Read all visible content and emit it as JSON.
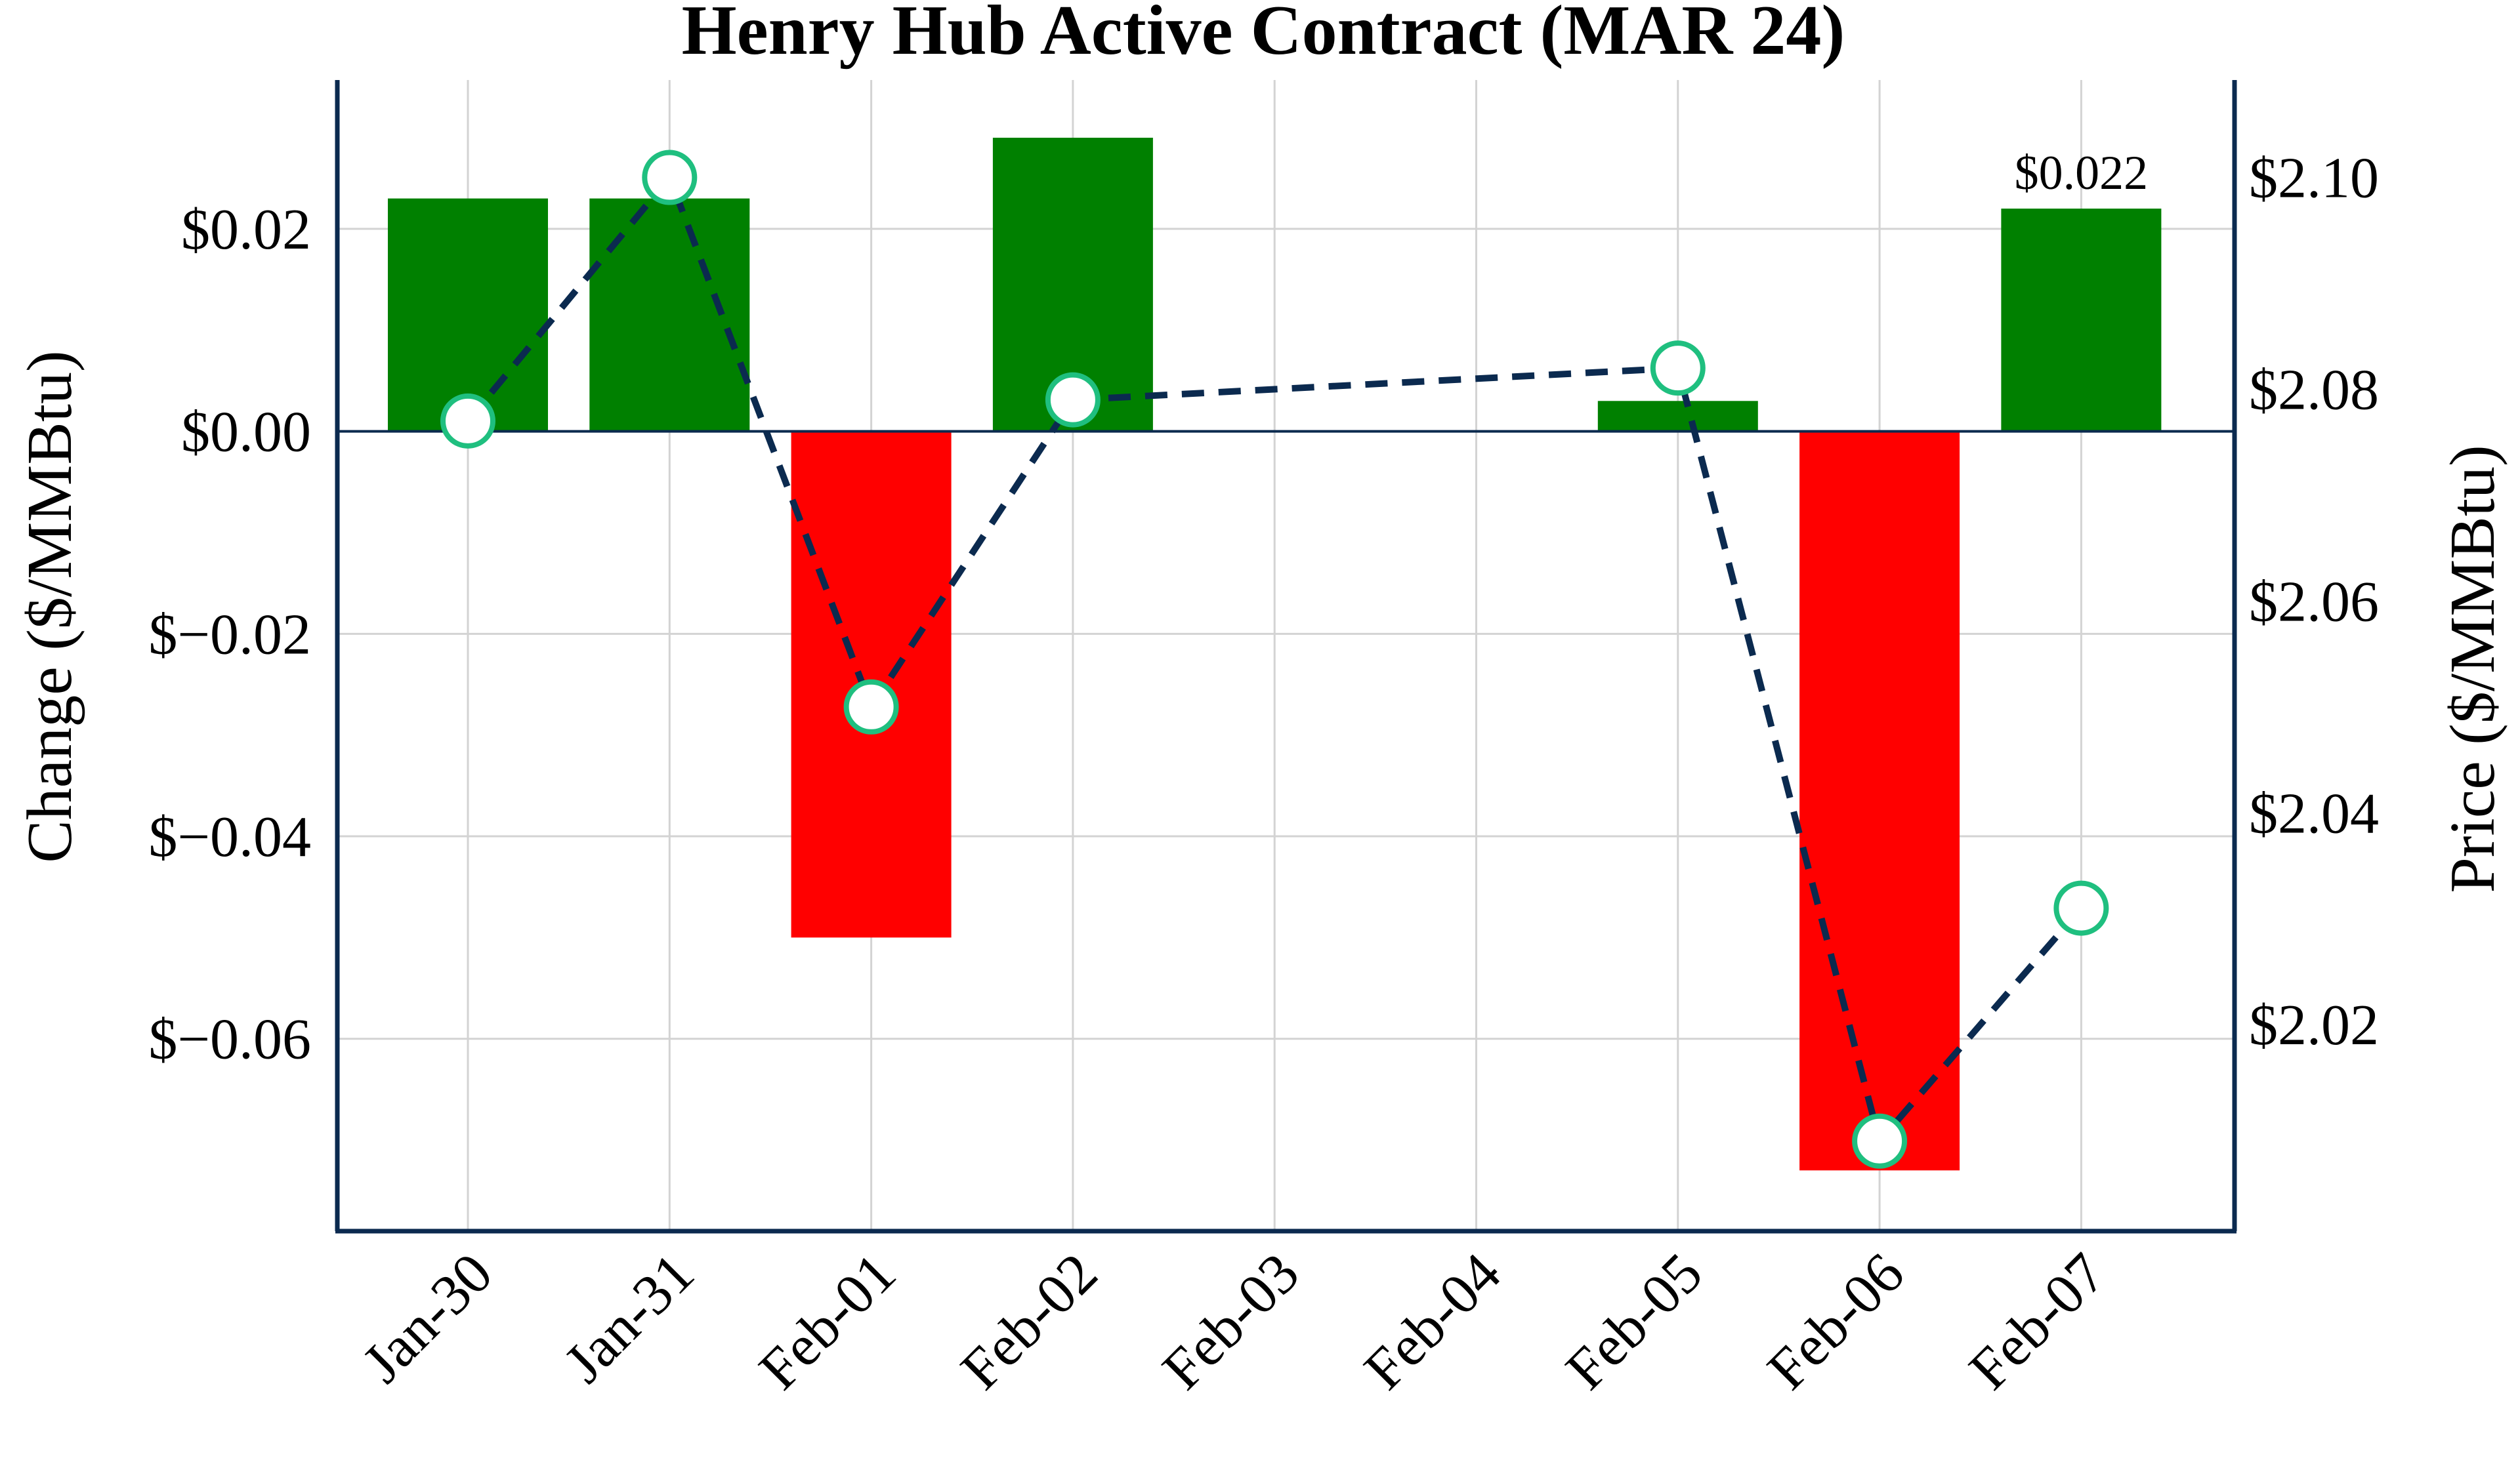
{
  "chart_data": {
    "type": "bar",
    "title": "Henry Hub Active Contract (MAR 24)",
    "xlabel": "",
    "categories": [
      "Jan-30",
      "Jan-31",
      "Feb-01",
      "Feb-02",
      "Feb-03",
      "Feb-04",
      "Feb-05",
      "Feb-06",
      "Feb-07"
    ],
    "series": [
      {
        "type": "bar",
        "axis": "left",
        "values": [
          0.023,
          0.023,
          -0.05,
          0.029,
          null,
          null,
          0.003,
          -0.073,
          0.022
        ]
      },
      {
        "type": "line",
        "axis": "right",
        "style": "dashed",
        "markers": "circle",
        "values": [
          2.077,
          2.1,
          2.05,
          2.079,
          null,
          null,
          2.082,
          2.009,
          2.031
        ]
      }
    ],
    "left_axis": {
      "label": "Change ($/MMBtu)",
      "ylim": [
        -0.079,
        0.0347
      ],
      "ticks": [
        0.02,
        0.0,
        -0.02,
        -0.04,
        -0.06
      ],
      "tick_labels": [
        "$0.02",
        "$0.00",
        "$−0.02",
        "$−0.04",
        "$−0.06"
      ]
    },
    "right_axis": {
      "label": "Price ($/MMBtu)",
      "ylim": [
        2.0005,
        2.1092
      ],
      "ticks": [
        2.1,
        2.08,
        2.06,
        2.04,
        2.02
      ],
      "tick_labels": [
        "$2.10",
        "$2.08",
        "$2.06",
        "$2.04",
        "$2.02"
      ]
    },
    "annotations": [
      {
        "category": "Feb-07",
        "value": 0.022,
        "text": "$0.022"
      }
    ],
    "grid": true,
    "colors": {
      "positive": "#008000",
      "negative": "#ff0000",
      "line": "#0b2a4f",
      "marker_edge": "#1fbf7f",
      "marker_fill": "#ffffff",
      "axis": "#0b2a4f",
      "grid": "#d3d3d3"
    }
  }
}
